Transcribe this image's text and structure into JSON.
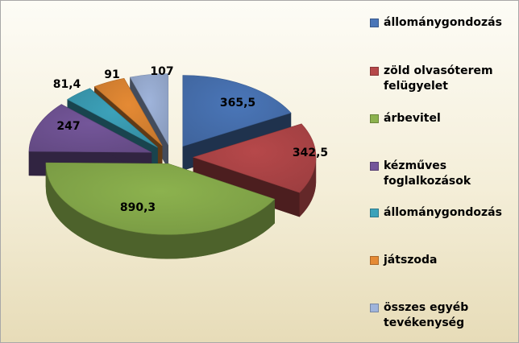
{
  "chart_data": {
    "type": "pie",
    "subtype": "3d-exploded",
    "labels": [
      "állománygondozás",
      "zöld olvasóterem felügyelet",
      "árbevitel",
      "kézműves foglalkozások",
      "állománygondozás",
      "játszoda",
      "összes egyéb tevékenység"
    ],
    "values": [
      365.5,
      342.5,
      890.3,
      247,
      81.4,
      91,
      107
    ],
    "data_labels": [
      "365,5",
      "342,5",
      "890,3",
      "247",
      "81,4",
      "91",
      "107"
    ],
    "colors": [
      "#4a76b8",
      "#b6484a",
      "#8cb24e",
      "#74569a",
      "#3ca2ba",
      "#e58a34",
      "#9fb4db"
    ],
    "legend_position": "right",
    "title": ""
  },
  "legend": {
    "items": [
      {
        "label": "állománygondozás",
        "color": "#4a76b8"
      },
      {
        "label": "zöld olvasóterem felügyelet",
        "color": "#b6484a"
      },
      {
        "label": "árbevitel",
        "color": "#8cb24e"
      },
      {
        "label": "kézműves foglalkozások",
        "color": "#74569a"
      },
      {
        "label": "állománygondozás",
        "color": "#3ca2ba"
      },
      {
        "label": "játszoda",
        "color": "#e58a34"
      },
      {
        "label": "összes egyéb tevékenység",
        "color": "#9fb4db"
      }
    ]
  }
}
